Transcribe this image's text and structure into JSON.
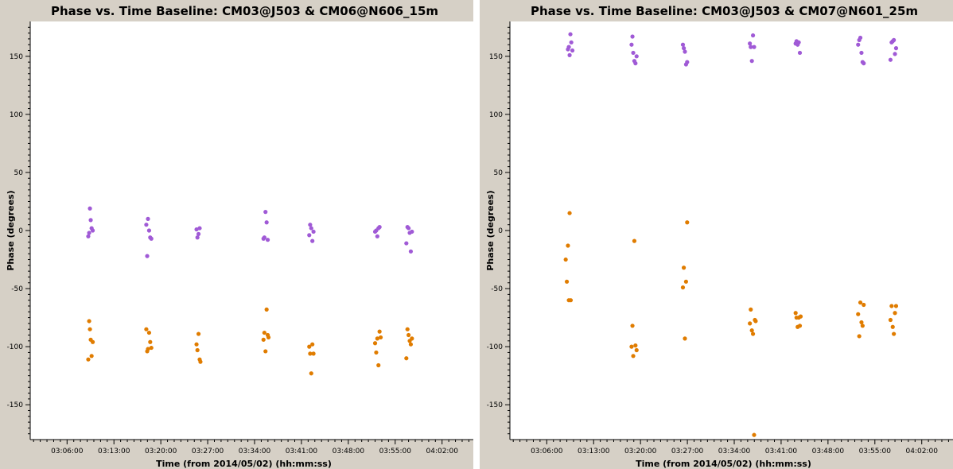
{
  "chart_data": [
    {
      "type": "scatter",
      "title": "Phase vs. Time Baseline: CM03@J503 & CM06@N606_15m",
      "xlabel": "Time (from 2014/05/02) (hh:mm:ss)",
      "ylabel": "Phase (degrees)",
      "x_ticks": [
        "03:06:00",
        "03:13:00",
        "03:20:00",
        "03:27:00",
        "03:34:00",
        "03:41:00",
        "03:48:00",
        "03:55:00",
        "04:02:00"
      ],
      "y_ticks": [
        "150",
        "100",
        "50",
        "0",
        "-50",
        "-100",
        "-150"
      ],
      "ylim": [
        -180,
        180
      ],
      "xlim": [
        "03:00:30",
        "04:06:40"
      ],
      "series": [
        {
          "color": "#a05ad6",
          "points": [
            [
              "03:09:10",
              -5
            ],
            [
              "03:09:18",
              -2
            ],
            [
              "03:09:25",
              19
            ],
            [
              "03:09:32",
              9
            ],
            [
              "03:09:40",
              2
            ],
            [
              "03:09:50",
              0
            ],
            [
              "03:17:50",
              5
            ],
            [
              "03:17:58",
              -22
            ],
            [
              "03:18:05",
              10
            ],
            [
              "03:18:15",
              0
            ],
            [
              "03:18:25",
              -6
            ],
            [
              "03:18:35",
              -7
            ],
            [
              "03:25:20",
              1
            ],
            [
              "03:25:28",
              -6
            ],
            [
              "03:25:38",
              -3
            ],
            [
              "03:25:48",
              2
            ],
            [
              "03:35:20",
              -7
            ],
            [
              "03:35:28",
              -6
            ],
            [
              "03:35:38",
              16
            ],
            [
              "03:35:48",
              7
            ],
            [
              "03:35:58",
              -8
            ],
            [
              "03:42:10",
              -4
            ],
            [
              "03:42:18",
              5
            ],
            [
              "03:42:28",
              2
            ],
            [
              "03:42:38",
              -9
            ],
            [
              "03:42:48",
              -1
            ],
            [
              "03:52:00",
              -1
            ],
            [
              "03:52:10",
              0
            ],
            [
              "03:52:20",
              -5
            ],
            [
              "03:52:30",
              2
            ],
            [
              "03:52:40",
              3
            ],
            [
              "03:56:40",
              -11
            ],
            [
              "03:56:50",
              3
            ],
            [
              "03:57:00",
              2
            ],
            [
              "03:57:10",
              -2
            ],
            [
              "03:57:20",
              -18
            ],
            [
              "03:57:30",
              -1
            ]
          ]
        },
        {
          "color": "#e07c00",
          "points": [
            [
              "03:09:10",
              -111
            ],
            [
              "03:09:18",
              -78
            ],
            [
              "03:09:25",
              -85
            ],
            [
              "03:09:32",
              -94
            ],
            [
              "03:09:40",
              -108
            ],
            [
              "03:09:50",
              -96
            ],
            [
              "03:17:50",
              -85
            ],
            [
              "03:17:58",
              -104
            ],
            [
              "03:18:05",
              -102
            ],
            [
              "03:18:15",
              -88
            ],
            [
              "03:18:25",
              -96
            ],
            [
              "03:18:35",
              -101
            ],
            [
              "03:25:20",
              -98
            ],
            [
              "03:25:28",
              -103
            ],
            [
              "03:25:38",
              -89
            ],
            [
              "03:25:48",
              -111
            ],
            [
              "03:25:55",
              -113
            ],
            [
              "03:35:20",
              -94
            ],
            [
              "03:35:28",
              -88
            ],
            [
              "03:35:38",
              -104
            ],
            [
              "03:35:48",
              -68
            ],
            [
              "03:35:58",
              -90
            ],
            [
              "03:36:05",
              -92
            ],
            [
              "03:42:10",
              -100
            ],
            [
              "03:42:18",
              -106
            ],
            [
              "03:42:28",
              -123
            ],
            [
              "03:42:38",
              -98
            ],
            [
              "03:42:48",
              -106
            ],
            [
              "03:52:00",
              -97
            ],
            [
              "03:52:10",
              -105
            ],
            [
              "03:52:20",
              -93
            ],
            [
              "03:52:30",
              -116
            ],
            [
              "03:52:40",
              -87
            ],
            [
              "03:52:50",
              -92
            ],
            [
              "03:56:40",
              -110
            ],
            [
              "03:56:50",
              -85
            ],
            [
              "03:57:00",
              -90
            ],
            [
              "03:57:10",
              -95
            ],
            [
              "03:57:20",
              -98
            ],
            [
              "03:57:30",
              -93
            ]
          ]
        }
      ]
    },
    {
      "type": "scatter",
      "title": "Phase vs. Time Baseline: CM03@J503 & CM07@N601_25m",
      "xlabel": "Time (from 2014/05/02) (hh:mm:ss)",
      "ylabel": "Phase (degrees)",
      "x_ticks": [
        "03:06:00",
        "03:13:00",
        "03:20:00",
        "03:27:00",
        "03:34:00",
        "03:41:00",
        "03:48:00",
        "03:55:00",
        "04:02:00"
      ],
      "y_ticks": [
        "150",
        "100",
        "50",
        "0",
        "-50",
        "-100",
        "-150"
      ],
      "ylim": [
        -180,
        180
      ],
      "xlim": [
        "03:00:30",
        "04:06:40"
      ],
      "series": [
        {
          "color": "#a05ad6",
          "points": [
            [
              "03:09:10",
              156
            ],
            [
              "03:09:18",
              158
            ],
            [
              "03:09:25",
              151
            ],
            [
              "03:09:32",
              169
            ],
            [
              "03:09:40",
              162
            ],
            [
              "03:09:50",
              155
            ],
            [
              "03:18:40",
              160
            ],
            [
              "03:18:48",
              167
            ],
            [
              "03:18:55",
              153
            ],
            [
              "03:19:05",
              146
            ],
            [
              "03:19:15",
              144
            ],
            [
              "03:19:25",
              150
            ],
            [
              "03:26:20",
              160
            ],
            [
              "03:26:28",
              157
            ],
            [
              "03:26:38",
              154
            ],
            [
              "03:26:48",
              143
            ],
            [
              "03:26:58",
              145
            ],
            [
              "03:36:20",
              161
            ],
            [
              "03:36:28",
              158
            ],
            [
              "03:36:38",
              146
            ],
            [
              "03:36:48",
              168
            ],
            [
              "03:36:58",
              158
            ],
            [
              "03:43:10",
              161
            ],
            [
              "03:43:18",
              163
            ],
            [
              "03:43:28",
              160
            ],
            [
              "03:43:38",
              162
            ],
            [
              "03:43:48",
              153
            ],
            [
              "03:52:30",
              160
            ],
            [
              "03:52:40",
              164
            ],
            [
              "03:52:50",
              166
            ],
            [
              "03:53:00",
              153
            ],
            [
              "03:53:10",
              145
            ],
            [
              "03:53:20",
              144
            ],
            [
              "03:57:20",
              147
            ],
            [
              "03:57:30",
              162
            ],
            [
              "03:57:40",
              163
            ],
            [
              "03:57:50",
              164
            ],
            [
              "03:58:00",
              152
            ],
            [
              "03:58:10",
              157
            ]
          ]
        },
        {
          "color": "#e07c00",
          "points": [
            [
              "03:08:50",
              -25
            ],
            [
              "03:09:00",
              -44
            ],
            [
              "03:09:10",
              -13
            ],
            [
              "03:09:18",
              -60
            ],
            [
              "03:09:25",
              15
            ],
            [
              "03:09:35",
              -60
            ],
            [
              "03:18:40",
              -100
            ],
            [
              "03:18:48",
              -82
            ],
            [
              "03:18:55",
              -108
            ],
            [
              "03:19:05",
              -9
            ],
            [
              "03:19:15",
              -99
            ],
            [
              "03:19:25",
              -103
            ],
            [
              "03:26:20",
              -49
            ],
            [
              "03:26:28",
              -32
            ],
            [
              "03:26:38",
              -93
            ],
            [
              "03:26:48",
              -44
            ],
            [
              "03:26:58",
              7
            ],
            [
              "03:36:20",
              -80
            ],
            [
              "03:36:28",
              -68
            ],
            [
              "03:36:38",
              -86
            ],
            [
              "03:36:48",
              -89
            ],
            [
              "03:36:58",
              -176
            ],
            [
              "03:37:05",
              -77
            ],
            [
              "03:37:12",
              -78
            ],
            [
              "03:43:10",
              -71
            ],
            [
              "03:43:18",
              -75
            ],
            [
              "03:43:28",
              -83
            ],
            [
              "03:43:38",
              -75
            ],
            [
              "03:43:48",
              -82
            ],
            [
              "03:43:55",
              -74
            ],
            [
              "03:52:30",
              -72
            ],
            [
              "03:52:40",
              -91
            ],
            [
              "03:52:50",
              -62
            ],
            [
              "03:53:00",
              -79
            ],
            [
              "03:53:10",
              -82
            ],
            [
              "03:53:20",
              -64
            ],
            [
              "03:57:20",
              -77
            ],
            [
              "03:57:30",
              -65
            ],
            [
              "03:57:40",
              -83
            ],
            [
              "03:57:50",
              -89
            ],
            [
              "03:58:00",
              -71
            ],
            [
              "03:58:10",
              -65
            ]
          ]
        }
      ]
    }
  ]
}
